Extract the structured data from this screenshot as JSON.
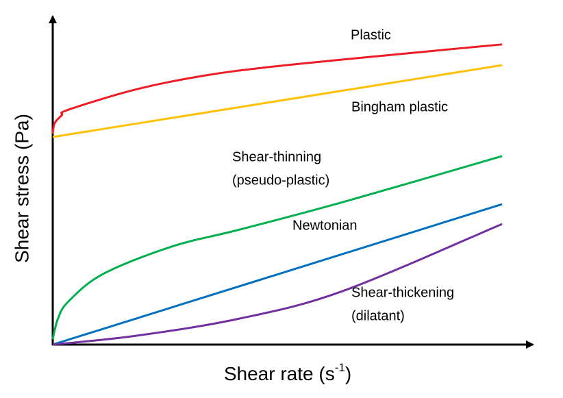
{
  "chart_data": {
    "type": "line",
    "xlabel": [
      "Shear rate (s",
      "-1",
      ")"
    ],
    "ylabel": "Shear stress (Pa)",
    "xlim": [
      0,
      100
    ],
    "ylim": [
      0,
      100
    ],
    "series": [
      {
        "label_lines": [
          "Plastic"
        ],
        "color": "#ee1c24",
        "x": [
          0,
          0.4,
          1.9,
          3.3,
          17.6,
          32,
          46.3,
          67.8,
          94
        ],
        "values": [
          64,
          67.2,
          69.6,
          71.3,
          77.5,
          81.7,
          84.4,
          87.5,
          91.1
        ]
      },
      {
        "label_lines": [
          "Bingham  plastic"
        ],
        "color": "#ffc000",
        "x": [
          0,
          94
        ],
        "values": [
          63,
          84.8
        ]
      },
      {
        "label_lines": [
          "Shear-thinning",
          "(pseudo-plastic)"
        ],
        "color": "#00b050",
        "x": [
          0,
          1.1,
          3.3,
          10.5,
          24.8,
          39.1,
          60.6,
          94
        ],
        "values": [
          1.7,
          7.9,
          13.1,
          21.4,
          29.7,
          34.9,
          43.2,
          57.2
        ]
      },
      {
        "label_lines": [
          "Newtonian"
        ],
        "color": "#0070c0",
        "x": [
          0,
          94
        ],
        "values": [
          0,
          42.6
        ]
      },
      {
        "label_lines": [
          "Shear-thickening",
          "(dilatant)"
        ],
        "color": "#7030a0",
        "x": [
          0,
          17.6,
          39.1,
          60.6,
          94
        ],
        "values": [
          0,
          2.7,
          7.9,
          16.2,
          36.6
        ]
      }
    ]
  }
}
